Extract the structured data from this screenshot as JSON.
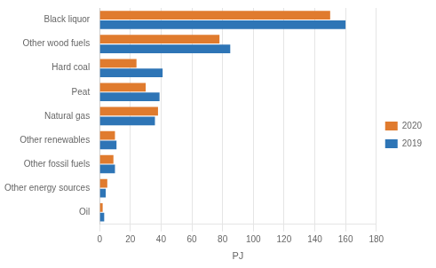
{
  "chart_data": {
    "type": "bar",
    "orientation": "horizontal",
    "categories": [
      "Black liquor",
      "Other wood fuels",
      "Hard coal",
      "Peat",
      "Natural gas",
      "Other renewables",
      "Other fossil fuels",
      "Other energy sources",
      "Oil"
    ],
    "series": [
      {
        "name": "2020",
        "color": "#e07b2e",
        "values": [
          150,
          78,
          24,
          30,
          38,
          10,
          9,
          5,
          2
        ]
      },
      {
        "name": "2019",
        "color": "#2e75b6",
        "values": [
          160,
          85,
          41,
          39,
          36,
          11,
          10,
          4,
          3
        ]
      }
    ],
    "xlabel": "PJ",
    "xlim": [
      0,
      180
    ],
    "xticks": [
      0,
      20,
      40,
      60,
      80,
      100,
      120,
      140,
      160,
      180
    ],
    "grid": true,
    "legend": "right"
  }
}
